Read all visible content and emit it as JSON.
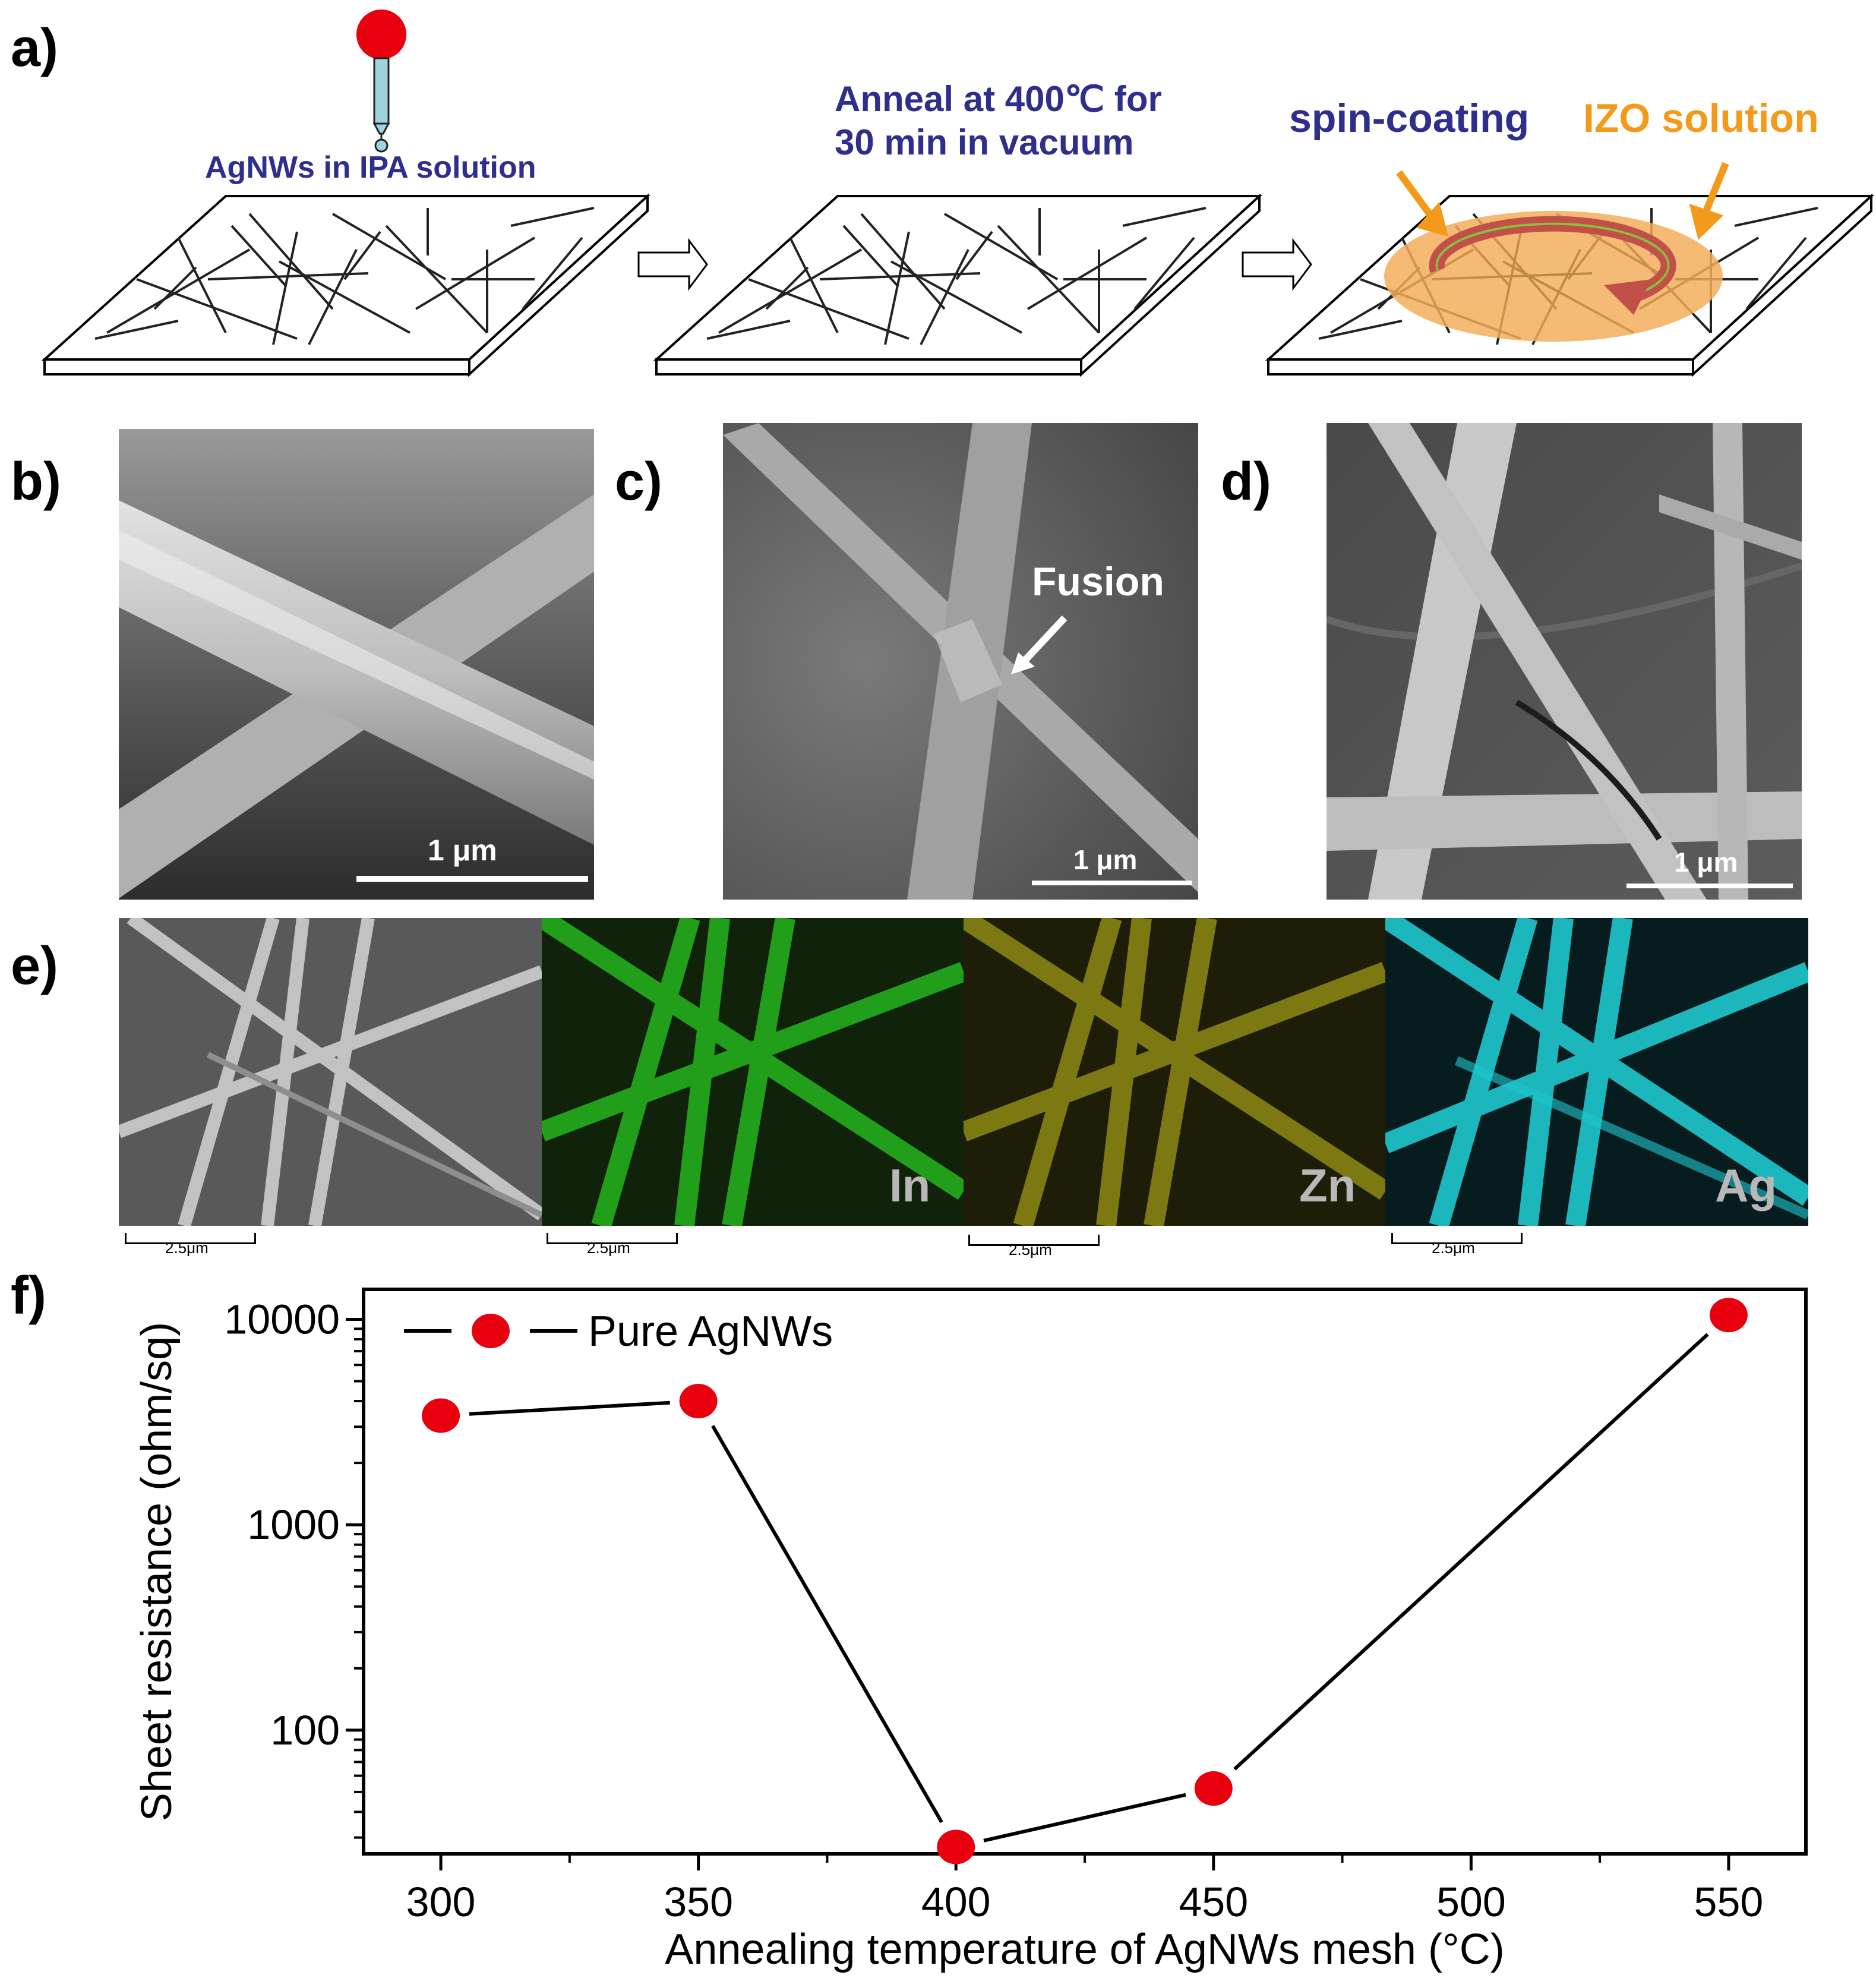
{
  "panels": {
    "a": {
      "label": "a)",
      "step1_text": "AgNWs in IPA solution",
      "step2_text_line1": "Anneal at 400℃ for",
      "step2_text_line2": "30 min in vacuum",
      "step3_text_left": "spin-coating",
      "step3_text_right": "IZO solution"
    },
    "b": {
      "label": "b)",
      "scale": "1 μm"
    },
    "c": {
      "label": "c)",
      "scale": "1 μm",
      "annotation": "Fusion"
    },
    "d": {
      "label": "d)",
      "scale": "1 μm"
    },
    "e": {
      "label": "e)",
      "scale": "2.5μm",
      "maps": [
        "In",
        "Zn",
        "Ag"
      ],
      "colors": {
        "In": "#27c21f",
        "Zn": "#c9c31c",
        "Ag": "#1fc7cf"
      }
    },
    "f": {
      "label": "f)"
    }
  },
  "chart_data": {
    "type": "line",
    "xlabel": "Annealing temperature of AgNWs mesh (°C)",
    "ylabel": "Sheet resistance (ohm/sq)",
    "yscale": "log",
    "xlim": [
      285,
      565
    ],
    "ylim": [
      25,
      14000
    ],
    "xticks": [
      300,
      350,
      400,
      450,
      500,
      550
    ],
    "yticks": [
      100,
      1000,
      10000
    ],
    "series": [
      {
        "name": "Pure AgNWs",
        "color": "#e8000f",
        "x": [
          300,
          350,
          400,
          450,
          550
        ],
        "y": [
          3400,
          4000,
          27,
          52,
          10500
        ]
      }
    ],
    "legend": "top-left"
  }
}
